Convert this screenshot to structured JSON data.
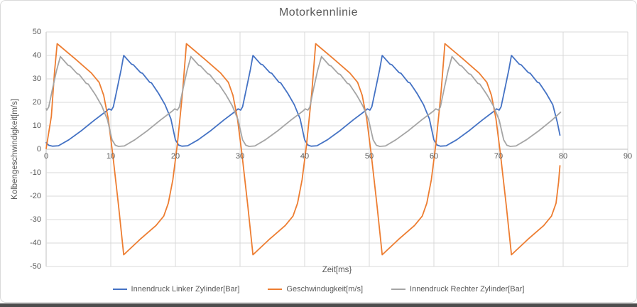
{
  "chart": {
    "title": "Motorkennlinie",
    "colors": {
      "grid": "#d9d9d9",
      "axis": "#bfbfbf",
      "text": "#595959",
      "background": "#ffffff"
    }
  },
  "chart_data": {
    "type": "line",
    "title": "Motorkennlinie",
    "xlabel": "Zeit[ms}",
    "ylabel": "Kolbengeschwindigkeit[m/s]",
    "xlim": [
      0,
      90
    ],
    "ylim": [
      -50,
      50
    ],
    "x_ticks": [
      0,
      10,
      20,
      30,
      40,
      50,
      60,
      70,
      80,
      90
    ],
    "y_ticks": [
      50,
      40,
      30,
      20,
      10,
      0,
      -10,
      -20,
      -30,
      -40,
      -50
    ],
    "grid": true,
    "legend_position": "bottom",
    "series": [
      {
        "name": "Innendruck Linker Zylinder[Bar]",
        "color": "#4472c4",
        "points": [
          [
            0,
            2.8
          ],
          [
            0.4,
            1.7
          ],
          [
            1.0,
            1.3
          ],
          [
            1.9,
            1.5
          ],
          [
            3.5,
            4
          ],
          [
            5.5,
            8
          ],
          [
            7.5,
            12.5
          ],
          [
            9.3,
            16.2
          ],
          [
            9.7,
            17.2
          ],
          [
            10.1,
            16.7
          ],
          [
            10.4,
            18.1
          ],
          [
            11.0,
            26
          ],
          [
            11.6,
            34
          ],
          [
            12.0,
            40
          ],
          [
            13.2,
            36.3
          ],
          [
            13.5,
            36.0
          ],
          [
            14.6,
            32.7
          ],
          [
            14.9,
            32.4
          ],
          [
            16.0,
            28.6
          ],
          [
            16.3,
            28.3
          ],
          [
            17.4,
            23.8
          ],
          [
            18.4,
            19.0
          ],
          [
            19.3,
            13
          ],
          [
            20.0,
            4
          ],
          [
            20.5,
            1.8
          ],
          [
            21.0,
            1.3
          ],
          [
            21.9,
            1.5
          ],
          [
            23.5,
            4
          ],
          [
            25.5,
            8
          ],
          [
            27.5,
            12.5
          ],
          [
            29.3,
            16.2
          ],
          [
            29.7,
            17.2
          ],
          [
            30.1,
            16.7
          ],
          [
            30.4,
            18.1
          ],
          [
            31.0,
            26
          ],
          [
            31.6,
            34
          ],
          [
            32.0,
            40
          ],
          [
            33.2,
            36.3
          ],
          [
            33.5,
            36.0
          ],
          [
            34.6,
            32.7
          ],
          [
            34.9,
            32.4
          ],
          [
            36.0,
            28.6
          ],
          [
            36.3,
            28.3
          ],
          [
            37.4,
            23.8
          ],
          [
            38.4,
            19.0
          ],
          [
            39.3,
            13
          ],
          [
            40.0,
            4
          ],
          [
            40.5,
            1.8
          ],
          [
            41.0,
            1.3
          ],
          [
            41.9,
            1.5
          ],
          [
            43.5,
            4
          ],
          [
            45.5,
            8
          ],
          [
            47.5,
            12.5
          ],
          [
            49.3,
            16.2
          ],
          [
            49.7,
            17.2
          ],
          [
            50.1,
            16.7
          ],
          [
            50.4,
            18.1
          ],
          [
            51.0,
            26
          ],
          [
            51.6,
            34
          ],
          [
            52.0,
            40
          ],
          [
            53.2,
            36.3
          ],
          [
            53.5,
            36.0
          ],
          [
            54.6,
            32.7
          ],
          [
            54.9,
            32.4
          ],
          [
            56.0,
            28.6
          ],
          [
            56.3,
            28.3
          ],
          [
            57.4,
            23.8
          ],
          [
            58.4,
            19.0
          ],
          [
            59.3,
            13
          ],
          [
            60.0,
            4
          ],
          [
            60.5,
            1.8
          ],
          [
            61.0,
            1.3
          ],
          [
            61.9,
            1.5
          ],
          [
            63.5,
            4
          ],
          [
            65.5,
            8
          ],
          [
            67.5,
            12.5
          ],
          [
            69.3,
            16.2
          ],
          [
            69.7,
            17.2
          ],
          [
            70.1,
            16.7
          ],
          [
            70.4,
            18.1
          ],
          [
            71.0,
            26
          ],
          [
            71.6,
            34
          ],
          [
            72.0,
            40
          ],
          [
            73.2,
            36.3
          ],
          [
            73.5,
            36.0
          ],
          [
            74.6,
            32.7
          ],
          [
            74.9,
            32.4
          ],
          [
            76.0,
            28.6
          ],
          [
            76.3,
            28.3
          ],
          [
            77.4,
            23.8
          ],
          [
            78.4,
            19.0
          ],
          [
            79.1,
            11.5
          ],
          [
            79.5,
            6
          ]
        ]
      },
      {
        "name": "Geschwindugkeit[m/s]",
        "color": "#ed7d31",
        "points": [
          [
            0,
            0.3
          ],
          [
            0.8,
            14
          ],
          [
            1.3,
            33
          ],
          [
            1.7,
            45
          ],
          [
            4.5,
            38.5
          ],
          [
            7.0,
            32.5
          ],
          [
            8.2,
            28.5
          ],
          [
            8.9,
            23
          ],
          [
            9.6,
            13
          ],
          [
            10.3,
            -2
          ],
          [
            11.2,
            -24
          ],
          [
            12.0,
            -45
          ],
          [
            14.5,
            -38.5
          ],
          [
            17.0,
            -32.5
          ],
          [
            18.2,
            -28.5
          ],
          [
            18.9,
            -23
          ],
          [
            19.6,
            -13
          ],
          [
            20.3,
            2
          ],
          [
            21.1,
            24
          ],
          [
            21.7,
            45
          ],
          [
            24.5,
            38.5
          ],
          [
            27.0,
            32.5
          ],
          [
            28.2,
            28.5
          ],
          [
            28.9,
            23
          ],
          [
            29.6,
            13
          ],
          [
            30.3,
            -2
          ],
          [
            31.2,
            -24
          ],
          [
            32.0,
            -45
          ],
          [
            34.5,
            -38.5
          ],
          [
            37.0,
            -32.5
          ],
          [
            38.2,
            -28.5
          ],
          [
            38.9,
            -23
          ],
          [
            39.6,
            -13
          ],
          [
            40.3,
            2
          ],
          [
            41.1,
            24
          ],
          [
            41.7,
            45
          ],
          [
            44.5,
            38.5
          ],
          [
            47.0,
            32.5
          ],
          [
            48.2,
            28.5
          ],
          [
            48.9,
            23
          ],
          [
            49.6,
            13
          ],
          [
            50.3,
            -2
          ],
          [
            51.2,
            -24
          ],
          [
            52.0,
            -45
          ],
          [
            54.5,
            -38.5
          ],
          [
            57.0,
            -32.5
          ],
          [
            58.2,
            -28.5
          ],
          [
            58.9,
            -23
          ],
          [
            59.6,
            -13
          ],
          [
            60.3,
            2
          ],
          [
            61.1,
            24
          ],
          [
            61.7,
            45
          ],
          [
            64.5,
            38.5
          ],
          [
            67.0,
            32.5
          ],
          [
            68.2,
            28.5
          ],
          [
            68.9,
            23
          ],
          [
            69.6,
            13
          ],
          [
            70.3,
            -2
          ],
          [
            71.2,
            -24
          ],
          [
            72.0,
            -45
          ],
          [
            74.5,
            -38.5
          ],
          [
            77.0,
            -32.5
          ],
          [
            78.2,
            -28.5
          ],
          [
            78.9,
            -23
          ],
          [
            79.3,
            -14
          ],
          [
            79.5,
            -7
          ]
        ]
      },
      {
        "name": "Innendruck Rechter Zylinder[Bar]",
        "color": "#a5a5a5",
        "points": [
          [
            0,
            17.3
          ],
          [
            0.1,
            16.7
          ],
          [
            0.4,
            18.0
          ],
          [
            1.0,
            26
          ],
          [
            1.6,
            33.5
          ],
          [
            2.2,
            39.5
          ],
          [
            3.4,
            35.8
          ],
          [
            3.7,
            35.5
          ],
          [
            4.8,
            32.2
          ],
          [
            5.1,
            31.9
          ],
          [
            6.2,
            28.1
          ],
          [
            6.5,
            27.8
          ],
          [
            7.6,
            23.3
          ],
          [
            8.6,
            18.5
          ],
          [
            9.5,
            12.5
          ],
          [
            10.2,
            4
          ],
          [
            10.7,
            1.7
          ],
          [
            11.2,
            1.2
          ],
          [
            12.1,
            1.4
          ],
          [
            13.7,
            4
          ],
          [
            15.7,
            8
          ],
          [
            17.7,
            12.5
          ],
          [
            19.5,
            16.2
          ],
          [
            19.9,
            17.2
          ],
          [
            20.3,
            16.7
          ],
          [
            20.6,
            18.0
          ],
          [
            21.2,
            26
          ],
          [
            21.8,
            33.5
          ],
          [
            22.4,
            39.5
          ],
          [
            23.6,
            35.8
          ],
          [
            23.9,
            35.5
          ],
          [
            25.0,
            32.2
          ],
          [
            25.3,
            31.9
          ],
          [
            26.4,
            28.1
          ],
          [
            26.7,
            27.8
          ],
          [
            27.8,
            23.3
          ],
          [
            28.8,
            18.5
          ],
          [
            29.7,
            12.5
          ],
          [
            30.4,
            4
          ],
          [
            30.9,
            1.7
          ],
          [
            31.4,
            1.2
          ],
          [
            32.3,
            1.4
          ],
          [
            33.9,
            4
          ],
          [
            35.9,
            8
          ],
          [
            37.9,
            12.5
          ],
          [
            39.7,
            16.2
          ],
          [
            40.1,
            17.2
          ],
          [
            40.5,
            16.7
          ],
          [
            40.8,
            18.0
          ],
          [
            41.4,
            26
          ],
          [
            42.0,
            33.5
          ],
          [
            42.6,
            39.5
          ],
          [
            43.8,
            35.8
          ],
          [
            44.1,
            35.5
          ],
          [
            45.2,
            32.2
          ],
          [
            45.5,
            31.9
          ],
          [
            46.6,
            28.1
          ],
          [
            46.9,
            27.8
          ],
          [
            48.0,
            23.3
          ],
          [
            49.0,
            18.5
          ],
          [
            49.9,
            12.5
          ],
          [
            50.6,
            4
          ],
          [
            51.1,
            1.7
          ],
          [
            51.6,
            1.2
          ],
          [
            52.5,
            1.4
          ],
          [
            54.1,
            4
          ],
          [
            56.1,
            8
          ],
          [
            58.1,
            12.5
          ],
          [
            59.9,
            16.2
          ],
          [
            60.3,
            17.2
          ],
          [
            60.7,
            16.7
          ],
          [
            61.0,
            18.0
          ],
          [
            61.6,
            26
          ],
          [
            62.2,
            33.5
          ],
          [
            62.8,
            39.5
          ],
          [
            64.0,
            35.8
          ],
          [
            64.3,
            35.5
          ],
          [
            65.4,
            32.2
          ],
          [
            65.7,
            31.9
          ],
          [
            66.8,
            28.1
          ],
          [
            67.1,
            27.8
          ],
          [
            68.2,
            23.3
          ],
          [
            69.2,
            18.5
          ],
          [
            70.1,
            12.5
          ],
          [
            70.8,
            4
          ],
          [
            71.3,
            1.7
          ],
          [
            71.8,
            1.2
          ],
          [
            72.7,
            1.4
          ],
          [
            74.3,
            4
          ],
          [
            76.3,
            8
          ],
          [
            78.3,
            12.5
          ],
          [
            79.6,
            15.8
          ]
        ]
      }
    ]
  }
}
